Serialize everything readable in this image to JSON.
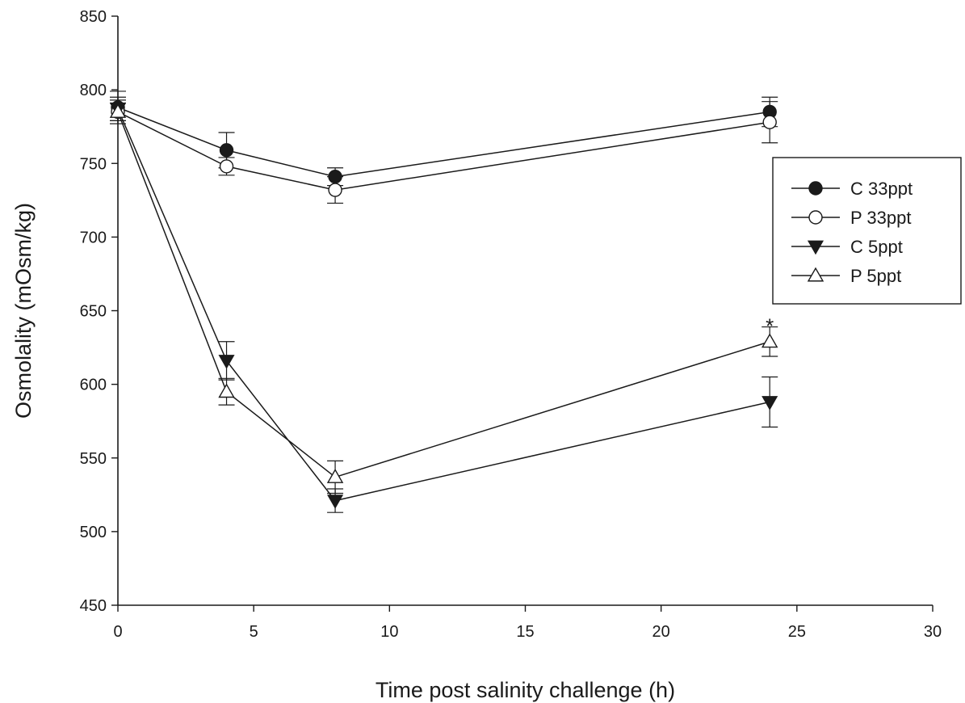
{
  "chart_data": {
    "type": "line",
    "title": "",
    "xlabel": "Time post salinity challenge (h)",
    "ylabel": "Osmolality (mOsm/kg)",
    "xlim": [
      0,
      30
    ],
    "ylim": [
      450,
      850
    ],
    "xticks": [
      0,
      5,
      10,
      15,
      20,
      25,
      30
    ],
    "yticks": [
      450,
      500,
      550,
      600,
      650,
      700,
      750,
      800,
      850
    ],
    "grid": false,
    "legend_position": "right",
    "x": [
      0,
      4,
      8,
      24
    ],
    "series": [
      {
        "name": "C 33ppt",
        "marker": "filled-circle",
        "values": [
          788,
          759,
          741,
          785
        ],
        "errors": [
          11,
          12,
          6,
          10
        ]
      },
      {
        "name": "P 33ppt",
        "marker": "open-circle",
        "values": [
          785,
          748,
          732,
          778
        ],
        "errors": [
          8,
          6,
          9,
          14
        ]
      },
      {
        "name": "C 5ppt",
        "marker": "filled-triangle-down",
        "values": [
          787,
          616,
          521,
          588
        ],
        "errors": [
          8,
          13,
          8,
          17
        ]
      },
      {
        "name": "P 5ppt",
        "marker": "open-triangle-up",
        "values": [
          785,
          595,
          537,
          629
        ],
        "errors": [
          6,
          9,
          11,
          10
        ]
      }
    ],
    "annotations": [
      {
        "text": "*",
        "x": 24,
        "y": 640
      }
    ]
  }
}
